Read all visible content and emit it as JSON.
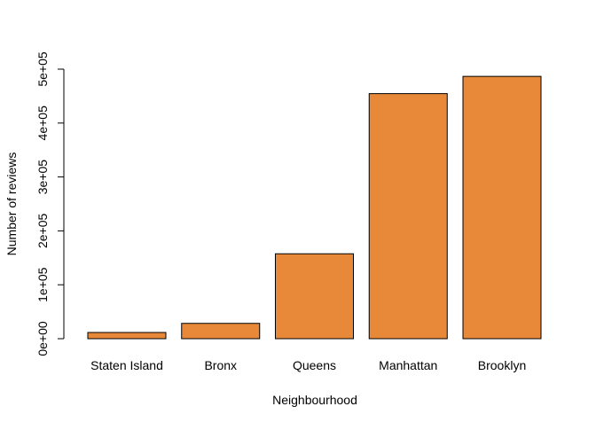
{
  "chart_data": {
    "type": "bar",
    "title": "",
    "xlabel": "Neighbourhood",
    "ylabel": "Number of reviews",
    "categories": [
      "Staten Island",
      "Bronx",
      "Queens",
      "Manhattan",
      "Brooklyn"
    ],
    "values": [
      11500,
      28400,
      157500,
      454600,
      486600
    ],
    "ylim": [
      0,
      500000
    ],
    "yticks": [
      0,
      100000,
      200000,
      300000,
      400000,
      500000
    ],
    "ytick_labels": [
      "0e+00",
      "1e+05",
      "2e+05",
      "3e+05",
      "4e+05",
      "5e+05"
    ],
    "bar_color": "#E8893A",
    "bar_border_color": "#000000",
    "grid": false,
    "legend": "none"
  }
}
